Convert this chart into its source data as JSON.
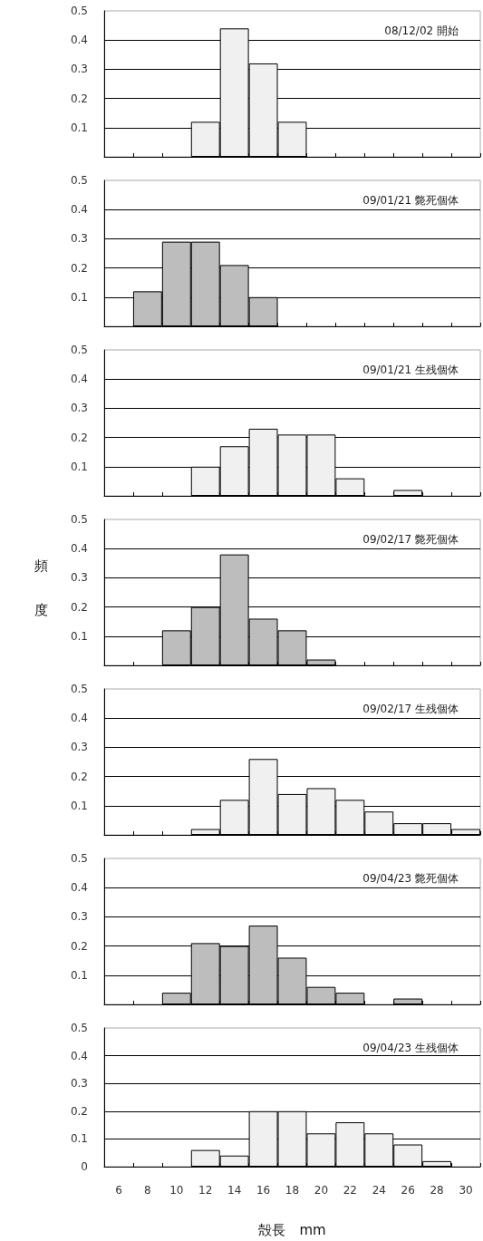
{
  "chart_data": [
    {
      "type": "bar",
      "title": "08/12/02 開始",
      "categories": [
        "6",
        "8",
        "10",
        "12",
        "14",
        "16",
        "18",
        "20",
        "22",
        "24",
        "26",
        "28",
        "30"
      ],
      "values": [
        0,
        0,
        0,
        0.12,
        0.44,
        0.32,
        0.12,
        0,
        0,
        0,
        0,
        0,
        0
      ],
      "color": "#f0f0f0",
      "ylim": [
        0,
        0.5
      ],
      "yticks": [
        0.1,
        0.2,
        0.3,
        0.4,
        0.5
      ],
      "grid": "y",
      "tick_labels": "y"
    },
    {
      "type": "bar",
      "title": "09/01/21 斃死個体",
      "categories": [
        "6",
        "8",
        "10",
        "12",
        "14",
        "16",
        "18",
        "20",
        "22",
        "24",
        "26",
        "28",
        "30"
      ],
      "values": [
        0,
        0.12,
        0.29,
        0.29,
        0.21,
        0.1,
        0,
        0,
        0,
        0,
        0,
        0,
        0
      ],
      "color": "#bdbdbd",
      "ylim": [
        0,
        0.5
      ],
      "yticks": [
        0.1,
        0.2,
        0.3,
        0.4,
        0.5
      ],
      "grid": "y",
      "tick_labels": "y"
    },
    {
      "type": "bar",
      "title": "09/01/21 生残個体",
      "categories": [
        "6",
        "8",
        "10",
        "12",
        "14",
        "16",
        "18",
        "20",
        "22",
        "24",
        "26",
        "28",
        "30"
      ],
      "values": [
        0,
        0,
        0,
        0.1,
        0.17,
        0.23,
        0.21,
        0.21,
        0.06,
        0,
        0.02,
        0,
        0
      ],
      "color": "#f0f0f0",
      "ylim": [
        0,
        0.5
      ],
      "yticks": [
        0.1,
        0.2,
        0.3,
        0.4,
        0.5
      ],
      "grid": "y",
      "tick_labels": "y"
    },
    {
      "type": "bar",
      "title": "09/02/17 斃死個体",
      "ylabel": "頻度",
      "categories": [
        "6",
        "8",
        "10",
        "12",
        "14",
        "16",
        "18",
        "20",
        "22",
        "24",
        "26",
        "28",
        "30"
      ],
      "values": [
        0,
        0,
        0.12,
        0.2,
        0.38,
        0.16,
        0.12,
        0.02,
        0,
        0,
        0,
        0,
        0
      ],
      "color": "#bdbdbd",
      "ylim": [
        0,
        0.5
      ],
      "yticks": [
        0.1,
        0.2,
        0.3,
        0.4,
        0.5
      ],
      "grid": "y",
      "tick_labels": "y"
    },
    {
      "type": "bar",
      "title": "09/02/17 生残個体",
      "categories": [
        "6",
        "8",
        "10",
        "12",
        "14",
        "16",
        "18",
        "20",
        "22",
        "24",
        "26",
        "28",
        "30"
      ],
      "values": [
        0,
        0,
        0,
        0.02,
        0.12,
        0.26,
        0.14,
        0.16,
        0.12,
        0.08,
        0.04,
        0.04,
        0.02
      ],
      "color": "#f0f0f0",
      "ylim": [
        0,
        0.5
      ],
      "yticks": [
        0.1,
        0.2,
        0.3,
        0.4,
        0.5
      ],
      "grid": "y",
      "tick_labels": "y"
    },
    {
      "type": "bar",
      "title": "09/04/23 斃死個体",
      "categories": [
        "6",
        "8",
        "10",
        "12",
        "14",
        "16",
        "18",
        "20",
        "22",
        "24",
        "26",
        "28",
        "30"
      ],
      "values": [
        0,
        0,
        0.04,
        0.21,
        0.2,
        0.27,
        0.16,
        0.06,
        0.04,
        0,
        0.02,
        0,
        0
      ],
      "color": "#bdbdbd",
      "ylim": [
        0,
        0.5
      ],
      "yticks": [
        0.1,
        0.2,
        0.3,
        0.4,
        0.5
      ],
      "grid": "y",
      "tick_labels": "y"
    },
    {
      "type": "bar",
      "title": "09/04/23 生残個体",
      "xlabel": "殻長　mm",
      "categories": [
        "6",
        "8",
        "10",
        "12",
        "14",
        "16",
        "18",
        "20",
        "22",
        "24",
        "26",
        "28",
        "30"
      ],
      "values": [
        0,
        0,
        0,
        0.06,
        0.04,
        0.2,
        0.2,
        0.12,
        0.16,
        0.12,
        0.08,
        0.02,
        0
      ],
      "color": "#f0f0f0",
      "ylim": [
        0,
        0.5
      ],
      "yticks": [
        0,
        0.1,
        0.2,
        0.3,
        0.4,
        0.5
      ],
      "grid": "y"
    }
  ]
}
